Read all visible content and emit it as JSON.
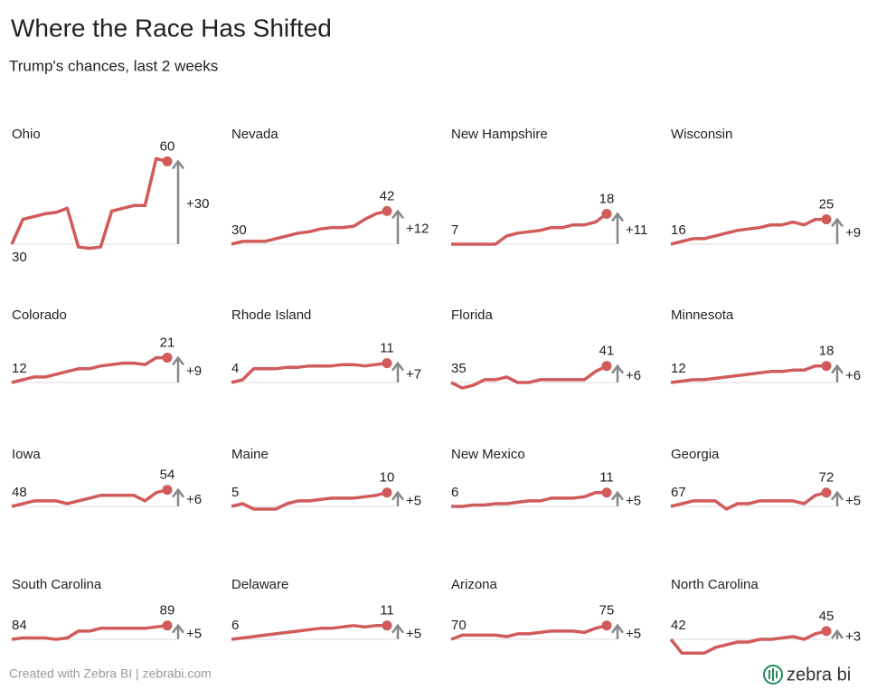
{
  "title": "Where the Race Has Shifted",
  "subtitle": "Trump's chances, last 2 weeks",
  "footer": {
    "credit": "Created with Zebra BI | zebrabi.com",
    "logo": "zebra bi"
  },
  "line_color": "#d15b5b",
  "chart_data": [
    {
      "type": "line",
      "title": "Ohio",
      "values": [
        30,
        39,
        40,
        41,
        41.5,
        43,
        29,
        28.5,
        29,
        42,
        43,
        44,
        44,
        61,
        60
      ],
      "change": {
        "value": 30,
        "label": "+30"
      }
    },
    {
      "type": "line",
      "title": "Nevada",
      "values": [
        30,
        31,
        31,
        31,
        32,
        33,
        34,
        34.5,
        35.5,
        36,
        36,
        36.5,
        39,
        41,
        42
      ],
      "change": {
        "value": 12,
        "label": "+12"
      }
    },
    {
      "type": "line",
      "title": "New Hampshire",
      "values": [
        7,
        7,
        7,
        7,
        7,
        10,
        11,
        11.5,
        12,
        13,
        13,
        14,
        14,
        15,
        18
      ],
      "change": {
        "value": 11,
        "label": "+11"
      }
    },
    {
      "type": "line",
      "title": "Wisconsin",
      "values": [
        16,
        17,
        18,
        18,
        19,
        20,
        21,
        21.5,
        22,
        23,
        23,
        24,
        23,
        25,
        25
      ],
      "change": {
        "value": 9,
        "label": "+9"
      }
    },
    {
      "type": "line",
      "title": "Colorado",
      "values": [
        12,
        13,
        14,
        14,
        15,
        16,
        17,
        17,
        18,
        18.5,
        19,
        19,
        18.5,
        21,
        21
      ],
      "change": {
        "value": 9,
        "label": "+9"
      }
    },
    {
      "type": "line",
      "title": "Rhode Island",
      "values": [
        4,
        5,
        9,
        9,
        9,
        9.5,
        9.5,
        10,
        10,
        10,
        10.5,
        10.5,
        10,
        10.5,
        11
      ],
      "change": {
        "value": 7,
        "label": "+7"
      }
    },
    {
      "type": "line",
      "title": "Florida",
      "values": [
        35,
        33,
        34,
        36,
        36,
        37,
        35,
        35,
        36,
        36,
        36,
        36,
        36,
        39,
        41
      ],
      "change": {
        "value": 6,
        "label": "+6"
      }
    },
    {
      "type": "line",
      "title": "Minnesota",
      "values": [
        12,
        12.5,
        13,
        13,
        13.5,
        14,
        14.5,
        15,
        15.5,
        16,
        16,
        16.5,
        16.5,
        18,
        18
      ],
      "change": {
        "value": 6,
        "label": "+6"
      }
    },
    {
      "type": "line",
      "title": "Iowa",
      "values": [
        48,
        49,
        50,
        50,
        50,
        49,
        50,
        51,
        52,
        52,
        52,
        52,
        50,
        53,
        54
      ],
      "change": {
        "value": 6,
        "label": "+6"
      }
    },
    {
      "type": "line",
      "title": "Maine",
      "values": [
        5,
        6,
        4,
        4,
        4,
        6,
        7,
        7,
        7.5,
        8,
        8,
        8,
        8.5,
        9,
        10
      ],
      "change": {
        "value": 5,
        "label": "+5"
      }
    },
    {
      "type": "line",
      "title": "New Mexico",
      "values": [
        6,
        6,
        6.5,
        6.5,
        7,
        7,
        7.5,
        8,
        8,
        9,
        9,
        9,
        9.5,
        11,
        11
      ],
      "change": {
        "value": 5,
        "label": "+5"
      }
    },
    {
      "type": "line",
      "title": "Georgia",
      "values": [
        67,
        68,
        69,
        69,
        69,
        66,
        68,
        68,
        69,
        69,
        69,
        69,
        68,
        71,
        72
      ],
      "change": {
        "value": 5,
        "label": "+5"
      }
    },
    {
      "type": "line",
      "title": "South Carolina",
      "values": [
        84,
        84.5,
        84.5,
        84.5,
        84,
        84.5,
        87,
        87,
        88,
        88,
        88,
        88,
        88,
        88.5,
        89
      ],
      "change": {
        "value": 5,
        "label": "+5"
      }
    },
    {
      "type": "line",
      "title": "Delaware",
      "values": [
        6,
        6.5,
        7,
        7.5,
        8,
        8.5,
        9,
        9.5,
        10,
        10,
        10.5,
        11,
        10.5,
        11,
        11
      ],
      "change": {
        "value": 5,
        "label": "+5"
      }
    },
    {
      "type": "line",
      "title": "Arizona",
      "values": [
        70,
        71.5,
        71.5,
        71.5,
        71.5,
        71,
        72,
        72,
        72.5,
        73,
        73,
        73,
        72.5,
        74,
        75
      ],
      "change": {
        "value": 5,
        "label": "+5"
      }
    },
    {
      "type": "line",
      "title": "North Carolina",
      "values": [
        42,
        37,
        37,
        37,
        39,
        40,
        41,
        41,
        42,
        42,
        42.5,
        43,
        42,
        44,
        45
      ],
      "change": {
        "value": 3,
        "label": "+3"
      }
    }
  ]
}
